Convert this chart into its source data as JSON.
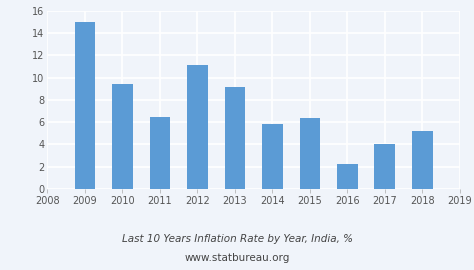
{
  "years": [
    2009,
    2010,
    2011,
    2012,
    2013,
    2014,
    2015,
    2016,
    2017,
    2018
  ],
  "values": [
    14.97,
    9.47,
    6.49,
    11.17,
    9.13,
    5.86,
    6.35,
    2.28,
    4.01,
    5.21
  ],
  "bar_color": "#5b9bd5",
  "background_color": "#f0f4fa",
  "plot_background": "#f0f4fa",
  "grid_color": "#ffffff",
  "title_line1": "Last 10 Years Inflation Rate by Year, India, %",
  "title_line2": "www.statbureau.org",
  "xlim": [
    2008.0,
    2019.0
  ],
  "ylim": [
    0,
    16
  ],
  "yticks": [
    0,
    2,
    4,
    6,
    8,
    10,
    12,
    14,
    16
  ],
  "xticks": [
    2008,
    2009,
    2010,
    2011,
    2012,
    2013,
    2014,
    2015,
    2016,
    2017,
    2018,
    2019
  ],
  "title_fontsize": 7.5,
  "subtitle_fontsize": 7.5,
  "tick_fontsize": 7,
  "bar_width": 0.55
}
